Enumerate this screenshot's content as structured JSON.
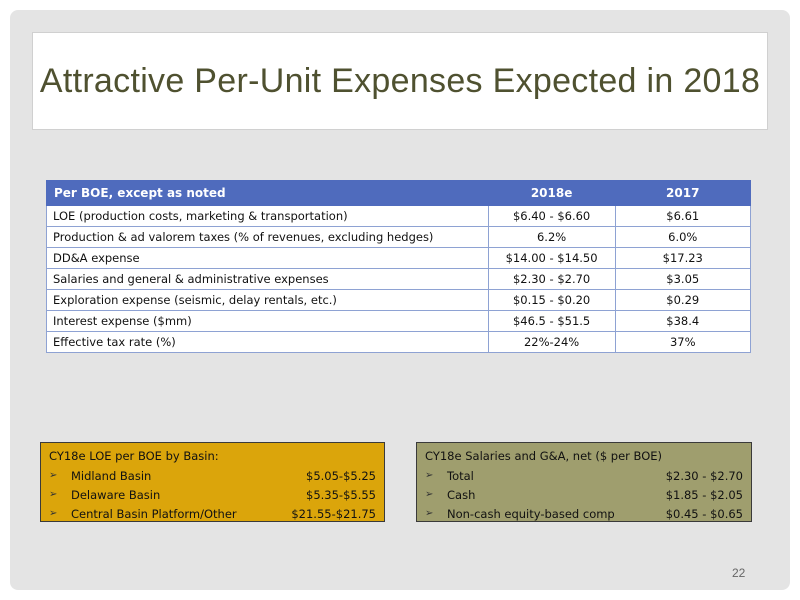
{
  "title": "Attractive Per-Unit Expenses Expected in 2018",
  "table": {
    "headers": [
      "Per BOE, except as noted",
      "2018e",
      "2017"
    ],
    "rows": [
      [
        "LOE (production costs, marketing & transportation)",
        "$6.40 - $6.60",
        "$6.61"
      ],
      [
        "Production & ad valorem taxes (% of revenues, excluding hedges)",
        "6.2%",
        "6.0%"
      ],
      [
        "DD&A expense",
        "$14.00 - $14.50",
        "$17.23"
      ],
      [
        "Salaries and general & administrative expenses",
        "$2.30 - $2.70",
        "$3.05"
      ],
      [
        "Exploration expense (seismic, delay rentals, etc.)",
        "$0.15 - $0.20",
        "$0.29"
      ],
      [
        "Interest expense ($mm)",
        "$46.5 - $51.5",
        "$38.4"
      ],
      [
        "Effective tax rate (%)",
        "22%-24%",
        "37%"
      ]
    ]
  },
  "loe_box": {
    "heading": "CY18e LOE per BOE by Basin:",
    "bullet_icon": "arrow-bullet-icon",
    "bullet_glyph": "➢",
    "items": [
      {
        "label": "Midland Basin",
        "value": "$5.05-$5.25"
      },
      {
        "label": "Delaware Basin",
        "value": "$5.35-$5.55"
      },
      {
        "label": "Central Basin Platform/Other",
        "value": "$21.55-$21.75"
      }
    ]
  },
  "ga_box": {
    "heading": "CY18e Salaries and G&A, net ($ per BOE)",
    "bullet_icon": "arrow-bullet-icon",
    "bullet_glyph": "➢",
    "items": [
      {
        "label": "Total",
        "value": "$2.30 - $2.70"
      },
      {
        "label": "Cash",
        "value": "$1.85 - $2.05"
      },
      {
        "label": "Non-cash equity-based comp",
        "value": "$0.45 - $0.65"
      }
    ]
  },
  "page_number": "22",
  "colors": {
    "title": "#4f5130",
    "table_header": "#4f6bbd",
    "loe_box": "#dba50b",
    "ga_box": "#9f9e6e",
    "slide_background": "#e4e4e4"
  }
}
